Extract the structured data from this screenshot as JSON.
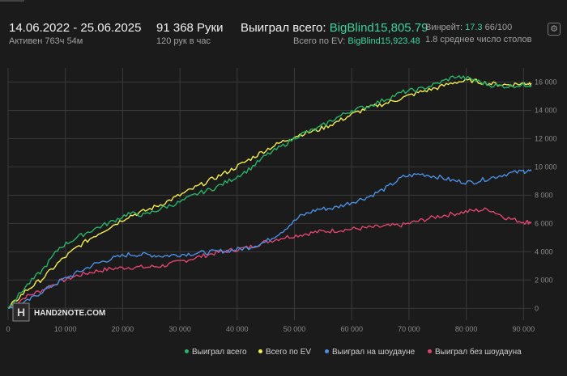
{
  "header": {
    "date_range": "14.06.2022 - 25.06.2025",
    "active_time": "Активен 763ч 54м",
    "hands": "91 368 Руки",
    "hands_per_hour": "120 рук в час",
    "won_label": "Выиграл всего:",
    "won_value": "BigBlind15,805.79",
    "ev_label": "Всего по EV:",
    "ev_value": "BigBlind15,923.48",
    "winrate_label": "Винрейт:",
    "winrate_value": "17.3",
    "winrate_suffix": "66/100",
    "tables": "1.8 среднее число столов",
    "settings_icon": "gear-icon"
  },
  "watermark": "HAND2NOTE.COM",
  "colors": {
    "background": "#1b1b1b",
    "grid": "#3a3a3a",
    "total": "#27b36a",
    "ev": "#f2ee4b",
    "showdown": "#4a90e2",
    "nonshowdown": "#e0456f",
    "accent": "#3ad29f"
  },
  "chart_data": {
    "type": "line",
    "xlim": [
      0,
      91368
    ],
    "ylim": [
      -500,
      17000
    ],
    "xticks": [
      0,
      10000,
      20000,
      30000,
      40000,
      50000,
      60000,
      70000,
      80000,
      90000
    ],
    "xtick_labels": [
      "0",
      "10 000",
      "20 000",
      "30 000",
      "40 000",
      "50 000",
      "60 000",
      "70 000",
      "80 000",
      "90 000"
    ],
    "yticks": [
      0,
      2000,
      4000,
      6000,
      8000,
      10000,
      12000,
      14000,
      16000
    ],
    "ytick_labels": [
      "0",
      "2 000",
      "4 000",
      "6 000",
      "8 000",
      "10 000",
      "12 000",
      "14 000",
      "16 000"
    ],
    "y_axis_side": "right",
    "grid": true,
    "legend_position": "bottom-right",
    "x": [
      0,
      3000,
      6000,
      9000,
      12000,
      15000,
      18000,
      21000,
      24000,
      27000,
      30000,
      33000,
      36000,
      39000,
      42000,
      45000,
      48000,
      51000,
      54000,
      57000,
      60000,
      63000,
      66000,
      69000,
      72000,
      75000,
      78000,
      81000,
      84000,
      87000,
      90000,
      91368
    ],
    "series": [
      {
        "name": "Выиграл всего",
        "color": "#27b36a",
        "values": [
          0,
          1500,
          2700,
          4300,
          5000,
          5600,
          6100,
          6700,
          6600,
          7100,
          7500,
          8100,
          8500,
          9100,
          9800,
          10800,
          11500,
          12300,
          12700,
          13400,
          14000,
          14300,
          14800,
          15300,
          15500,
          15900,
          16400,
          16200,
          15800,
          15700,
          15800,
          15805
        ]
      },
      {
        "name": "Всего по EV",
        "color": "#f2ee4b",
        "values": [
          0,
          1200,
          2100,
          3300,
          4300,
          5100,
          5800,
          6500,
          6900,
          7400,
          8000,
          8600,
          9200,
          9800,
          10500,
          11200,
          11800,
          12300,
          12600,
          13100,
          13700,
          14200,
          14500,
          14900,
          15300,
          15600,
          16000,
          16100,
          15900,
          15800,
          15900,
          15923
        ]
      },
      {
        "name": "Выиграл на шоудауне",
        "color": "#4a90e2",
        "values": [
          0,
          400,
          1200,
          1900,
          2500,
          3100,
          3500,
          3800,
          3800,
          3700,
          3800,
          3900,
          4000,
          4100,
          4300,
          4700,
          5500,
          6500,
          7000,
          7100,
          7500,
          7900,
          8500,
          9300,
          9500,
          9300,
          9000,
          8900,
          9200,
          9500,
          9700,
          9700
        ]
      },
      {
        "name": "Выиграл без шоудауна",
        "color": "#e0456f",
        "values": [
          0,
          800,
          1300,
          1900,
          2300,
          2600,
          2800,
          2900,
          2900,
          3000,
          3300,
          3600,
          3900,
          4100,
          4300,
          4700,
          5000,
          5200,
          5400,
          5500,
          5600,
          5700,
          5800,
          5900,
          6200,
          6500,
          6700,
          6900,
          7000,
          6400,
          6100,
          6100
        ]
      }
    ]
  }
}
